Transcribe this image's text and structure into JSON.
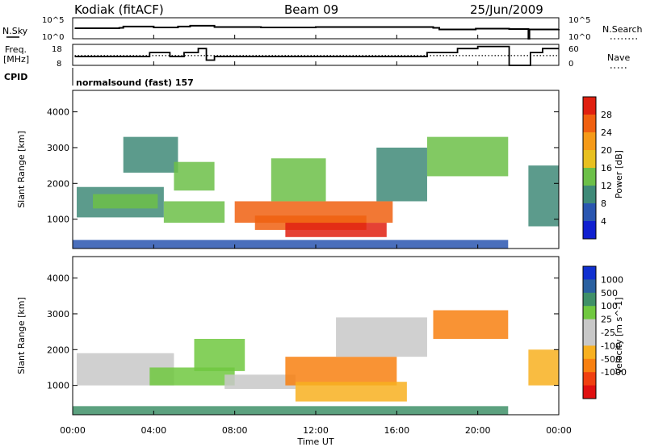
{
  "header": {
    "station": "Kodiak (fitACF)",
    "beam": "Beam 09",
    "date": "25/Jun/2009"
  },
  "labels": {
    "nsky": "N.Sky",
    "nsearch": "N.Search",
    "freq_line1": "Freq.",
    "freq_line2": "[MHz]",
    "nave": "Nave",
    "cpid": "CPID",
    "cpid_value": "normalsound (fast) 157"
  },
  "colors": {
    "power": [
      "#1020d0",
      "#2a56b0",
      "#3f8a78",
      "#6cc048",
      "#e8c020",
      "#f59a18",
      "#f06010",
      "#e02010"
    ],
    "velocity": [
      "#1030d0",
      "#2a60a0",
      "#3f9068",
      "#70c840",
      "#c8c8c8",
      "#c8c8c8",
      "#f8b020",
      "#f88010",
      "#f04010",
      "#e01010"
    ]
  },
  "chart_data": [
    {
      "type": "line",
      "name": "noise",
      "ytick_labels_left": [
        "10^5",
        "10^0"
      ],
      "ytick_labels_right": [
        "10^5",
        "10^0"
      ],
      "series": [
        {
          "name": "N.Sky",
          "x_hours": [
            0.1,
            2.3,
            2.5,
            4.0,
            5.2,
            5.8,
            7.0,
            9.3,
            12.0,
            15.0,
            17.8,
            18.1,
            19.9,
            21.55,
            22.5,
            22.55,
            24.0
          ],
          "y_log10": [
            2.5,
            2.6,
            2.9,
            2.7,
            2.9,
            3.1,
            2.8,
            2.7,
            2.8,
            2.8,
            2.6,
            2.2,
            2.4,
            2.3,
            0.0,
            2.2,
            2.3
          ]
        }
      ]
    },
    {
      "type": "line",
      "name": "frequency",
      "ytick_labels_left": [
        "18",
        "8"
      ],
      "ytick_labels_right": [
        "60",
        "0"
      ],
      "series": [
        {
          "name": "Freq. [MHz]",
          "x_hours": [
            0.1,
            2.7,
            3.8,
            4.8,
            5.5,
            6.2,
            6.6,
            7.0,
            8.0,
            17.5,
            19.0,
            20.0,
            21.5,
            21.55,
            22.5,
            22.6,
            23.2,
            24.0
          ],
          "y": [
            12.2,
            12.2,
            14.1,
            12.2,
            14.1,
            16.0,
            10.5,
            12.2,
            12.2,
            14.1,
            16.0,
            17.0,
            17.0,
            8.0,
            8.0,
            14.1,
            16.0,
            16.0
          ]
        },
        {
          "name": "Nave",
          "x_hours": [
            0.1,
            24.0
          ],
          "y": [
            28,
            28
          ]
        }
      ]
    },
    {
      "type": "heatmap",
      "name": "power",
      "ylabel": "Slant Range [km]",
      "yticks": [
        1000,
        2000,
        3000,
        4000
      ],
      "ylim": [
        180,
        4600
      ],
      "colorbar_label": "Power [dB]",
      "colorbar_ticks": [
        4,
        8,
        12,
        16,
        20,
        24,
        28
      ],
      "regions": [
        {
          "t": [
            0.2,
            4.5
          ],
          "r": [
            1050,
            1900
          ],
          "v": 10
        },
        {
          "t": [
            1.0,
            4.2
          ],
          "r": [
            1300,
            1700
          ],
          "v": 14
        },
        {
          "t": [
            2.5,
            5.2
          ],
          "r": [
            2300,
            3300
          ],
          "v": 9
        },
        {
          "t": [
            4.5,
            7.5
          ],
          "r": [
            900,
            1500
          ],
          "v": 15
        },
        {
          "t": [
            5.0,
            7.0
          ],
          "r": [
            1800,
            2600
          ],
          "v": 13
        },
        {
          "t": [
            8.0,
            15.8
          ],
          "r": [
            900,
            1500
          ],
          "v": 24
        },
        {
          "t": [
            9.0,
            14.5
          ],
          "r": [
            700,
            1100
          ],
          "v": 27
        },
        {
          "t": [
            10.5,
            15.5
          ],
          "r": [
            500,
            900
          ],
          "v": 28
        },
        {
          "t": [
            9.8,
            12.5
          ],
          "r": [
            1500,
            2700
          ],
          "v": 15
        },
        {
          "t": [
            17.5,
            21.5
          ],
          "r": [
            2200,
            3300
          ],
          "v": 13
        },
        {
          "t": [
            15.0,
            17.5
          ],
          "r": [
            1500,
            3000
          ],
          "v": 9
        },
        {
          "t": [
            22.5,
            24.0
          ],
          "r": [
            800,
            2500
          ],
          "v": 8
        },
        {
          "t": [
            0.0,
            21.5
          ],
          "r": [
            180,
            420
          ],
          "v": 5
        }
      ]
    },
    {
      "type": "heatmap",
      "name": "velocity",
      "ylabel": "Slant Range [km]",
      "xlabel": "Time UT",
      "xticks": [
        "00:00",
        "04:00",
        "08:00",
        "12:00",
        "16:00",
        "20:00",
        "00:00"
      ],
      "yticks": [
        1000,
        2000,
        3000,
        4000
      ],
      "ylim": [
        180,
        4600
      ],
      "colorbar_label": "Velocity [m s^-1]",
      "colorbar_ticks": [
        "1000",
        "500",
        "100",
        "25",
        "-25",
        "-100",
        "-500",
        "-1000"
      ],
      "regions": [
        {
          "t": [
            0.2,
            5.0
          ],
          "r": [
            1000,
            1900
          ],
          "v": 0
        },
        {
          "t": [
            3.8,
            8.0
          ],
          "r": [
            1000,
            1500
          ],
          "v": 90
        },
        {
          "t": [
            7.5,
            11.0
          ],
          "r": [
            900,
            1300
          ],
          "v": 0
        },
        {
          "t": [
            10.5,
            16.0
          ],
          "r": [
            1000,
            1800
          ],
          "v": -150
        },
        {
          "t": [
            11.0,
            16.5
          ],
          "r": [
            550,
            1100
          ],
          "v": -100
        },
        {
          "t": [
            17.8,
            21.5
          ],
          "r": [
            2300,
            3100
          ],
          "v": -300
        },
        {
          "t": [
            6.0,
            8.5
          ],
          "r": [
            1400,
            2300
          ],
          "v": 60
        },
        {
          "t": [
            13.0,
            17.5
          ],
          "r": [
            1800,
            2900
          ],
          "v": 0
        },
        {
          "t": [
            22.5,
            24.0
          ],
          "r": [
            1000,
            2000
          ],
          "v": -60
        },
        {
          "t": [
            0.0,
            21.5
          ],
          "r": [
            180,
            420
          ],
          "v": 100
        }
      ]
    }
  ]
}
